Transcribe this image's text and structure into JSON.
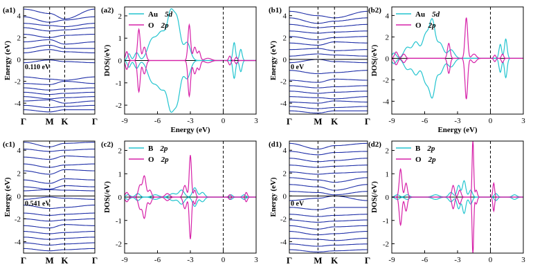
{
  "colors": {
    "band": "#1f2fa8",
    "dos_a": "#22c4cf",
    "dos_b": "#d620a8",
    "axis": "#000000"
  },
  "chart_data": [
    {
      "id": "a1",
      "type": "line",
      "panel_label": "(a1)",
      "kind": "band",
      "ylabel": "Energy (eV)",
      "ylim": [
        -5.0,
        4.8
      ],
      "yticks": [
        -4,
        -2,
        0,
        2,
        4
      ],
      "kpoints": [
        "Γ",
        "M",
        "K",
        "Γ"
      ],
      "kpoint_positions": [
        0,
        1,
        1.577,
        2.732
      ],
      "gap_label": "0.110 eV",
      "bands": [
        [
          4.6,
          4.2,
          3.7,
          4.6
        ],
        [
          3.9,
          3.4,
          3.6,
          3.9
        ],
        [
          3.3,
          3.1,
          3.0,
          3.3
        ],
        [
          2.9,
          2.6,
          2.7,
          2.9
        ],
        [
          2.3,
          2.0,
          2.2,
          2.3
        ],
        [
          1.6,
          1.8,
          1.4,
          1.6
        ],
        [
          1.0,
          1.3,
          1.0,
          1.0
        ],
        [
          0.6,
          0.9,
          0.7,
          0.6
        ],
        [
          -0.3,
          -0.05,
          -0.2,
          -0.3
        ],
        [
          -1.6,
          -1.8,
          -1.9,
          -1.6
        ],
        [
          -2.2,
          -2.3,
          -2.0,
          -2.2
        ],
        [
          -2.6,
          -2.8,
          -2.7,
          -2.6
        ],
        [
          -3.0,
          -3.2,
          -3.1,
          -3.0
        ],
        [
          -3.4,
          -3.6,
          -3.5,
          -3.4
        ],
        [
          -3.8,
          -3.7,
          -4.0,
          -3.8
        ],
        [
          -4.2,
          -4.4,
          -4.3,
          -4.2
        ],
        [
          -4.6,
          -4.8,
          -4.6,
          -4.6
        ]
      ]
    },
    {
      "id": "a2",
      "type": "line",
      "panel_label": "(a2)",
      "kind": "dos",
      "xlabel": "Energy (eV)",
      "ylabel": "DOS(/eV)",
      "xlim": [
        -9,
        3
      ],
      "ylim": [
        -2.4,
        2.4
      ],
      "xticks": [
        -9,
        -6,
        -3,
        0,
        3
      ],
      "yticks": [
        -2,
        -1,
        0,
        1,
        2
      ],
      "legend": "top-left",
      "series": [
        {
          "name": "Au",
          "orbital": "5d",
          "color": "#22c4cf",
          "peaks": [
            [
              -8.6,
              0.3,
              0.15
            ],
            [
              -7.9,
              0.35,
              0.2
            ],
            [
              -6.5,
              0.9,
              0.4
            ],
            [
              -5.6,
              1.2,
              0.4
            ],
            [
              -4.8,
              1.9,
              0.3
            ],
            [
              -4.2,
              1.7,
              0.3
            ],
            [
              -3.3,
              0.8,
              0.3
            ],
            [
              1.0,
              0.8,
              0.12
            ],
            [
              1.6,
              0.5,
              0.12
            ]
          ]
        },
        {
          "name": "O",
          "orbital": "2p",
          "color": "#d620a8",
          "peaks": [
            [
              -8.8,
              0.4,
              0.12
            ],
            [
              -7.7,
              1.4,
              0.12
            ],
            [
              -7.2,
              0.6,
              0.15
            ],
            [
              -3.1,
              1.6,
              0.12
            ],
            [
              -2.6,
              0.6,
              0.15
            ],
            [
              -2.2,
              0.4,
              0.12
            ],
            [
              -1.4,
              0.1,
              0.3
            ],
            [
              0.6,
              0.2,
              0.1
            ],
            [
              1.2,
              0.15,
              0.1
            ]
          ]
        }
      ]
    },
    {
      "id": "b1",
      "type": "line",
      "panel_label": "(b1)",
      "kind": "band",
      "ylabel": "Energy (eV)",
      "ylim": [
        -5.0,
        4.8
      ],
      "yticks": [
        -4,
        -2,
        0,
        2,
        4
      ],
      "kpoints": [
        "Γ",
        "M",
        "K",
        "Γ"
      ],
      "kpoint_positions": [
        0,
        1,
        1.577,
        2.732
      ],
      "gap_label": "0 eV",
      "bands": [
        [
          4.4,
          4.0,
          3.8,
          4.4
        ],
        [
          3.8,
          3.3,
          3.5,
          3.8
        ],
        [
          3.2,
          2.9,
          3.0,
          3.2
        ],
        [
          2.6,
          2.4,
          2.5,
          2.6
        ],
        [
          2.1,
          1.8,
          2.0,
          2.1
        ],
        [
          1.5,
          1.3,
          1.6,
          1.5
        ],
        [
          0.9,
          1.0,
          0.8,
          0.9
        ],
        [
          0.3,
          0.5,
          0.4,
          0.3
        ],
        [
          -0.3,
          0.0,
          -0.2,
          -0.3
        ],
        [
          -1.0,
          -1.3,
          -1.2,
          -1.0
        ],
        [
          -1.9,
          -2.1,
          -1.8,
          -1.9
        ],
        [
          -2.4,
          -2.6,
          -2.5,
          -2.4
        ],
        [
          -2.9,
          -3.1,
          -3.0,
          -2.9
        ],
        [
          -3.4,
          -3.5,
          -3.6,
          -3.4
        ],
        [
          -3.9,
          -4.0,
          -3.8,
          -3.9
        ],
        [
          -4.3,
          -4.5,
          -4.4,
          -4.3
        ],
        [
          -4.7,
          -4.9,
          -4.7,
          -4.7
        ]
      ]
    },
    {
      "id": "b2",
      "type": "line",
      "panel_label": "(b2)",
      "kind": "dos",
      "xlabel": "Energy (eV)",
      "ylabel": "DOS(/eV)",
      "xlim": [
        -9,
        3
      ],
      "ylim": [
        -5.2,
        4.8
      ],
      "xticks": [
        -9,
        -6,
        -3,
        0,
        3
      ],
      "yticks": [
        -4,
        -2,
        0,
        2,
        4
      ],
      "legend": "top-left",
      "series": [
        {
          "name": "Au",
          "orbital": "5d",
          "color": "#22c4cf",
          "peaks": [
            [
              -8.8,
              0.5,
              0.2
            ],
            [
              -7.6,
              1.0,
              0.3
            ],
            [
              -6.8,
              1.5,
              0.3
            ],
            [
              -5.9,
              2.2,
              0.3
            ],
            [
              -5.3,
              3.3,
              0.25
            ],
            [
              -4.6,
              1.4,
              0.3
            ],
            [
              -3.6,
              0.8,
              0.3
            ],
            [
              0.9,
              1.3,
              0.12
            ],
            [
              1.4,
              1.8,
              0.12
            ]
          ]
        },
        {
          "name": "O",
          "orbital": "2p",
          "color": "#d620a8",
          "peaks": [
            [
              -8.6,
              0.6,
              0.15
            ],
            [
              -7.9,
              0.4,
              0.15
            ],
            [
              -3.8,
              1.4,
              0.12
            ],
            [
              -2.2,
              3.8,
              0.12
            ],
            [
              -1.5,
              0.4,
              0.2
            ],
            [
              0.4,
              0.3,
              0.1
            ],
            [
              1.1,
              0.4,
              0.1
            ]
          ]
        }
      ]
    },
    {
      "id": "c1",
      "type": "line",
      "panel_label": "(c1)",
      "kind": "band",
      "ylabel": "Energy (eV)",
      "ylim": [
        -5.0,
        4.8
      ],
      "yticks": [
        -4,
        -2,
        0,
        2,
        4
      ],
      "kpoints": [
        "Γ",
        "M",
        "K",
        "Γ"
      ],
      "kpoint_positions": [
        0,
        1,
        1.577,
        2.732
      ],
      "gap_label": "0.541 eV",
      "bands": [
        [
          4.7,
          4.3,
          4.6,
          4.7
        ],
        [
          4.1,
          3.9,
          4.0,
          4.1
        ],
        [
          3.4,
          3.2,
          3.5,
          3.4
        ],
        [
          2.8,
          2.5,
          2.7,
          2.8
        ],
        [
          2.2,
          1.9,
          2.3,
          2.2
        ],
        [
          1.4,
          1.1,
          1.5,
          1.4
        ],
        [
          0.8,
          0.6,
          0.9,
          0.8
        ],
        [
          0.45,
          0.55,
          0.5,
          0.45
        ],
        [
          -0.3,
          -0.1,
          -0.2,
          -0.3
        ],
        [
          -0.8,
          -1.1,
          -1.0,
          -0.8
        ],
        [
          -1.5,
          -1.7,
          -1.6,
          -1.5
        ],
        [
          -2.0,
          -2.2,
          -2.1,
          -2.0
        ],
        [
          -2.6,
          -2.8,
          -2.5,
          -2.6
        ],
        [
          -3.1,
          -3.3,
          -3.2,
          -3.1
        ],
        [
          -3.6,
          -3.8,
          -3.7,
          -3.6
        ],
        [
          -4.1,
          -4.3,
          -4.2,
          -4.1
        ],
        [
          -4.6,
          -4.8,
          -4.7,
          -4.6
        ]
      ]
    },
    {
      "id": "c2",
      "type": "line",
      "panel_label": "(c2)",
      "kind": "dos",
      "xlabel": "",
      "ylabel": "DOS(/eV)",
      "xlim": [
        -9,
        3
      ],
      "ylim": [
        -2.4,
        2.4
      ],
      "xticks": [
        -9,
        -6,
        -3,
        0,
        3
      ],
      "yticks": [
        -2,
        -1,
        0,
        1,
        2
      ],
      "legend": "top-left",
      "series": [
        {
          "name": "B",
          "orbital": "2p",
          "color": "#22c4cf",
          "peaks": [
            [
              -8.7,
              0.1,
              0.2
            ],
            [
              -7.8,
              0.15,
              0.2
            ],
            [
              -6.2,
              0.1,
              0.3
            ],
            [
              -4.6,
              0.15,
              0.3
            ],
            [
              -3.8,
              0.3,
              0.25
            ],
            [
              -2.6,
              0.4,
              0.2
            ],
            [
              -1.9,
              0.2,
              0.2
            ],
            [
              0.7,
              0.1,
              0.15
            ],
            [
              1.9,
              0.1,
              0.15
            ]
          ]
        },
        {
          "name": "O",
          "orbital": "2p",
          "color": "#d620a8",
          "peaks": [
            [
              -8.8,
              0.2,
              0.15
            ],
            [
              -7.6,
              0.5,
              0.15
            ],
            [
              -7.2,
              0.9,
              0.15
            ],
            [
              -6.7,
              0.3,
              0.15
            ],
            [
              -5.1,
              0.15,
              0.2
            ],
            [
              -3.5,
              0.5,
              0.15
            ],
            [
              -3.0,
              1.8,
              0.1
            ],
            [
              -2.6,
              0.3,
              0.1
            ],
            [
              0.6,
              0.1,
              0.1
            ],
            [
              2.1,
              0.2,
              0.1
            ]
          ]
        }
      ]
    },
    {
      "id": "d1",
      "type": "line",
      "panel_label": "(d1)",
      "kind": "band",
      "ylabel": "Energy (eV)",
      "ylim": [
        -5.0,
        4.8
      ],
      "yticks": [
        -4,
        -2,
        0,
        2,
        4
      ],
      "kpoints": [
        "Γ",
        "M",
        "K",
        "Γ"
      ],
      "kpoint_positions": [
        0,
        1,
        1.577,
        2.732
      ],
      "gap_label": "0 eV",
      "bands": [
        [
          4.6,
          4.1,
          4.4,
          4.6
        ],
        [
          3.9,
          3.6,
          3.8,
          3.9
        ],
        [
          3.3,
          3.0,
          3.1,
          3.3
        ],
        [
          2.7,
          2.5,
          2.6,
          2.7
        ],
        [
          2.1,
          1.9,
          2.0,
          2.1
        ],
        [
          1.6,
          1.4,
          1.2,
          1.6
        ],
        [
          1.0,
          0.8,
          0.5,
          1.0
        ],
        [
          0.4,
          0.3,
          0.1,
          0.4
        ],
        [
          -0.4,
          -0.2,
          0.0,
          -0.4
        ],
        [
          -1.0,
          -1.2,
          -1.0,
          -1.0
        ],
        [
          -1.6,
          -1.8,
          -1.7,
          -1.6
        ],
        [
          -2.1,
          -2.3,
          -2.2,
          -2.1
        ],
        [
          -2.6,
          -2.9,
          -2.7,
          -2.6
        ],
        [
          -3.1,
          -3.4,
          -3.3,
          -3.1
        ],
        [
          -3.7,
          -3.8,
          -3.9,
          -3.7
        ],
        [
          -4.2,
          -4.4,
          -4.3,
          -4.2
        ],
        [
          -4.7,
          -4.9,
          -4.8,
          -4.7
        ]
      ]
    },
    {
      "id": "d2",
      "type": "line",
      "panel_label": "(d2)",
      "kind": "dos",
      "xlabel": "",
      "ylabel": "DOS(/eV)",
      "xlim": [
        -9,
        3
      ],
      "ylim": [
        -2.4,
        2.4
      ],
      "xticks": [
        -9,
        -6,
        -3,
        0,
        3
      ],
      "yticks": [
        -2,
        -1,
        0,
        1,
        2
      ],
      "legend": "top-left",
      "series": [
        {
          "name": "B",
          "orbital": "2p",
          "color": "#22c4cf",
          "peaks": [
            [
              -8.5,
              0.1,
              0.2
            ],
            [
              -7.6,
              0.1,
              0.2
            ],
            [
              -5.0,
              0.1,
              0.3
            ],
            [
              -3.6,
              0.2,
              0.2
            ],
            [
              -2.9,
              0.5,
              0.15
            ],
            [
              -2.4,
              0.7,
              0.15
            ],
            [
              -1.8,
              0.3,
              0.15
            ],
            [
              0.5,
              0.15,
              0.15
            ],
            [
              2.2,
              0.1,
              0.2
            ]
          ]
        },
        {
          "name": "O",
          "orbital": "2p",
          "color": "#d620a8",
          "peaks": [
            [
              -8.2,
              1.2,
              0.12
            ],
            [
              -7.7,
              0.6,
              0.12
            ],
            [
              -3.4,
              0.5,
              0.12
            ],
            [
              -2.8,
              0.3,
              0.12
            ],
            [
              -1.6,
              2.5,
              0.07
            ],
            [
              -1.3,
              0.3,
              0.1
            ],
            [
              0.3,
              0.6,
              0.08
            ]
          ]
        }
      ]
    }
  ]
}
